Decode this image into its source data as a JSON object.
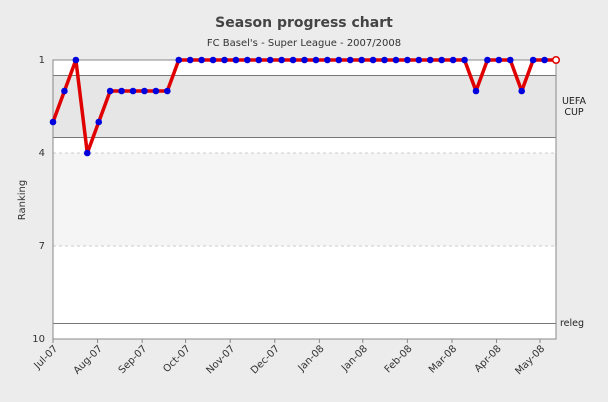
{
  "chart_data": {
    "type": "line",
    "title": "Season progress chart",
    "subtitle": "FC Basel's - Super League - 2007/2008",
    "y_label": "Ranking",
    "x": [
      1,
      2,
      3,
      4,
      5,
      6,
      7,
      8,
      9,
      10,
      11,
      12,
      13,
      14,
      15,
      16,
      17,
      18,
      19,
      20,
      21,
      22,
      23,
      24,
      25,
      26,
      27,
      28,
      29,
      30,
      31,
      32,
      33,
      34,
      35,
      36,
      37,
      38,
      39,
      40,
      41,
      42,
      43,
      44,
      45
    ],
    "series": [
      {
        "color": "#e00000",
        "marker_color": "#0000dd",
        "values": [
          3,
          2,
          1,
          4,
          3,
          2,
          2,
          2,
          2,
          2,
          2,
          1,
          1,
          1,
          1,
          1,
          1,
          1,
          1,
          1,
          1,
          1,
          1,
          1,
          1,
          1,
          1,
          1,
          1,
          1,
          1,
          1,
          1,
          1,
          1,
          1,
          1,
          2,
          1,
          1,
          1,
          2,
          1,
          1,
          1
        ]
      }
    ],
    "xlim": [
      1,
      45
    ],
    "xticks": [
      {
        "value": 1,
        "label": "Jul-07"
      },
      {
        "value": 4.9,
        "label": "Aug-07"
      },
      {
        "value": 8.8,
        "label": "Sep-07"
      },
      {
        "value": 12.6,
        "label": "Oct-07"
      },
      {
        "value": 16.5,
        "label": "Nov-07"
      },
      {
        "value": 20.4,
        "label": "Dec-07"
      },
      {
        "value": 24.3,
        "label": "Jan-08"
      },
      {
        "value": 28.1,
        "label": "Jan-08"
      },
      {
        "value": 32,
        "label": "Feb-08"
      },
      {
        "value": 35.9,
        "label": "Mar-08"
      },
      {
        "value": 39.8,
        "label": "Apr-08"
      },
      {
        "value": 43.6,
        "label": "May-08"
      }
    ],
    "ylim": [
      1,
      10
    ],
    "yticks": [
      1,
      4,
      7,
      10
    ],
    "inverted_y": true,
    "bands": [
      {
        "from": 1.5,
        "to": 3.5,
        "label": "UEFA CUP",
        "color": "#e6e6e6"
      }
    ],
    "lines": [
      {
        "value": 9.5,
        "label": "releg"
      }
    ]
  }
}
